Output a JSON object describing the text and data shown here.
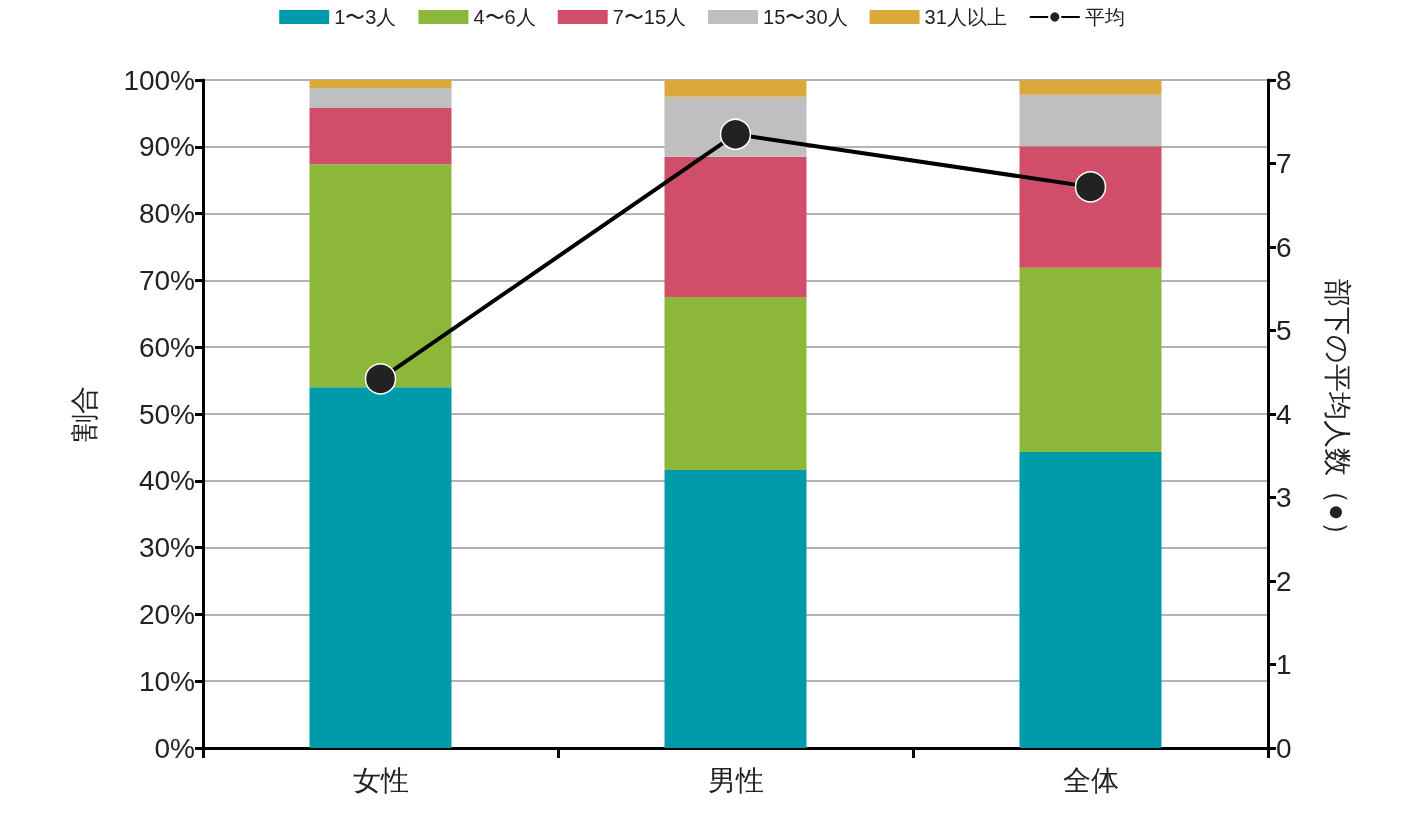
{
  "chart_data": {
    "type": "bar",
    "stacked": true,
    "categories": [
      "女性",
      "男性",
      "全体"
    ],
    "series": [
      {
        "name": "1〜3人",
        "color": "#009bab",
        "values": [
          54.0,
          41.6,
          44.3
        ]
      },
      {
        "name": "4〜6人",
        "color": "#8db73a",
        "values": [
          33.4,
          25.9,
          27.6
        ]
      },
      {
        "name": "7〜15人",
        "color": "#d04e69",
        "values": [
          8.4,
          21.0,
          18.2
        ]
      },
      {
        "name": "15〜30人",
        "color": "#bfbfbf",
        "values": [
          3.0,
          9.0,
          7.7
        ]
      },
      {
        "name": "31人以上",
        "color": "#dba83a",
        "values": [
          1.2,
          2.5,
          2.2
        ]
      },
      {
        "name": "平均",
        "type": "line",
        "axis": "y2",
        "color": "#000000",
        "values": [
          4.42,
          7.35,
          6.72
        ],
        "marker": "circle",
        "line_style": "solid"
      }
    ],
    "ylabel": "割合",
    "y2label": "部下の平均人数（●）",
    "ylim": [
      0,
      100
    ],
    "yticks": [
      {
        "value": 0,
        "label": "0%"
      },
      {
        "value": 10,
        "label": "10%"
      },
      {
        "value": 20,
        "label": "20%"
      },
      {
        "value": 30,
        "label": "30%"
      },
      {
        "value": 40,
        "label": "40%"
      },
      {
        "value": 50,
        "label": "50%"
      },
      {
        "value": 60,
        "label": "60%"
      },
      {
        "value": 70,
        "label": "70%"
      },
      {
        "value": 80,
        "label": "80%"
      },
      {
        "value": 90,
        "label": "90%"
      },
      {
        "value": 100,
        "label": "100%"
      }
    ],
    "y2lim": [
      0,
      8
    ],
    "y2ticks": [
      0,
      1,
      2,
      3,
      4,
      5,
      6,
      7,
      8
    ],
    "grid": "y",
    "legend": "top"
  }
}
